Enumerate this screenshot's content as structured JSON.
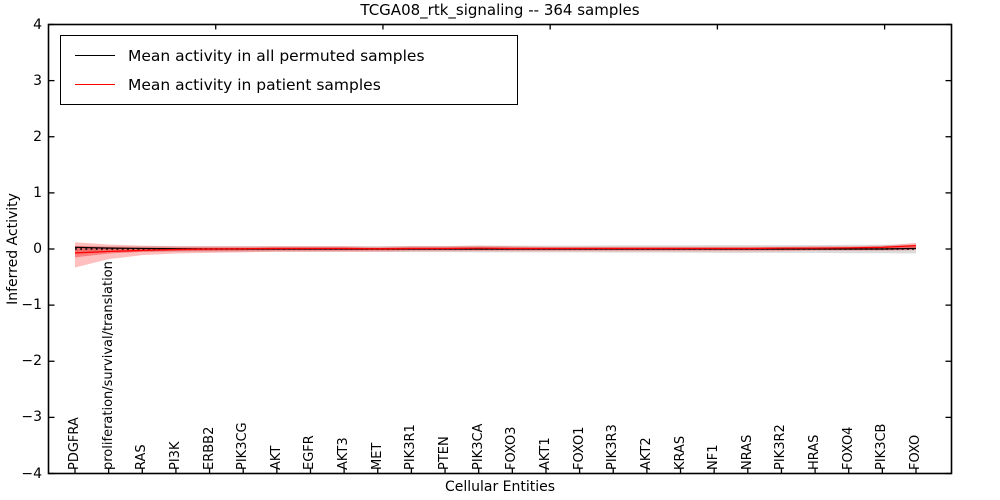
{
  "figure": {
    "title": "TCGA08_rtk_signaling -- 364 samples",
    "xlabel": "Cellular Entities",
    "ylabel": "Inferred Activity"
  },
  "legend": {
    "position": "upper left",
    "entries": [
      {
        "label": "Mean activity in all permuted samples",
        "color": "#000000"
      },
      {
        "label": "Mean activity in patient samples",
        "color": "#ff0000"
      }
    ]
  },
  "chart_data": {
    "type": "line",
    "title": "TCGA08_rtk_signaling -- 364 samples",
    "xlabel": "Cellular Entities",
    "ylabel": "Inferred Activity",
    "ylim": [
      -4,
      4
    ],
    "yticks": [
      4,
      3,
      2,
      1,
      0,
      -1,
      -2,
      -3,
      -4
    ],
    "ytick_labels": [
      "4",
      "3",
      "2",
      "1",
      "0",
      "−1",
      "−2",
      "−3",
      "−4"
    ],
    "grid": false,
    "legend_position": "upper left",
    "categories": [
      "PDGFRA",
      "proliferation/survival/translation",
      "RAS",
      "PI3K",
      "ERBB2",
      "PIK3CG",
      "AKT",
      "EGFR",
      "AKT3",
      "MET",
      "PIK3R1",
      "PTEN",
      "PIK3CA",
      "FOXO3",
      "AKT1",
      "FOXO1",
      "PIK3R3",
      "AKT2",
      "KRAS",
      "NF1",
      "NRAS",
      "PIK3R2",
      "HRAS",
      "FOXO4",
      "PIK3CB",
      "FOXO"
    ],
    "series": [
      {
        "name": "Mean activity in all permuted samples",
        "color": "#000000",
        "style": "solid",
        "width": 1.2,
        "values": [
          0.03,
          0.015,
          0.01,
          0.005,
          0,
          0,
          0,
          0,
          0,
          0,
          0,
          0,
          0,
          0,
          0,
          0,
          0,
          0,
          0,
          0,
          0,
          0,
          0,
          0,
          0,
          0.01
        ]
      },
      {
        "name": "Mean activity in patient samples",
        "color": "#ff0000",
        "style": "solid",
        "width": 1.3,
        "values": [
          -0.07,
          -0.045,
          -0.025,
          -0.01,
          0,
          0.005,
          0.01,
          0.01,
          0.01,
          0.005,
          0.01,
          0.01,
          0.015,
          0.01,
          0.01,
          0.01,
          0.01,
          0.01,
          0.01,
          0.01,
          0.01,
          0.015,
          0.015,
          0.02,
          0.03,
          0.06
        ]
      },
      {
        "name": "zero-reference",
        "color": "#000000",
        "style": "dotted",
        "width": 1.5,
        "values": [
          0,
          0,
          0,
          0,
          0,
          0,
          0,
          0,
          0,
          0,
          0,
          0,
          0,
          0,
          0,
          0,
          0,
          0,
          0,
          0,
          0,
          0,
          0,
          0,
          0,
          0
        ]
      }
    ],
    "bands": [
      {
        "name": "permuted-samples-std-band",
        "color": "#999999",
        "opacity": 0.35,
        "core_scale": 0,
        "upper": [
          0.05,
          0.05,
          0.05,
          0.05,
          0.05,
          0.05,
          0.05,
          0.05,
          0.05,
          0.05,
          0.055,
          0.055,
          0.06,
          0.06,
          0.06,
          0.06,
          0.065,
          0.065,
          0.065,
          0.07,
          0.07,
          0.07,
          0.07,
          0.075,
          0.075,
          0.08
        ],
        "lower": [
          -0.05,
          -0.05,
          -0.05,
          -0.05,
          -0.05,
          -0.05,
          -0.05,
          -0.05,
          -0.05,
          -0.05,
          -0.055,
          -0.055,
          -0.06,
          -0.06,
          -0.06,
          -0.06,
          -0.065,
          -0.065,
          -0.065,
          -0.07,
          -0.07,
          -0.07,
          -0.07,
          -0.075,
          -0.075,
          -0.08
        ]
      },
      {
        "name": "patient-samples-std-band",
        "color": "#ff0000",
        "opacity": 0.25,
        "core_scale": 0.45,
        "upper": [
          0.12,
          0.08,
          0.06,
          0.05,
          0.05,
          0.05,
          0.05,
          0.05,
          0.05,
          0.04,
          0.05,
          0.05,
          0.06,
          0.05,
          0.04,
          0.04,
          0.04,
          0.04,
          0.04,
          0.04,
          0.04,
          0.04,
          0.05,
          0.05,
          0.06,
          0.11
        ],
        "lower": [
          -0.33,
          -0.18,
          -0.11,
          -0.08,
          -0.07,
          -0.06,
          -0.05,
          -0.05,
          -0.05,
          -0.05,
          -0.04,
          -0.04,
          -0.04,
          -0.04,
          -0.04,
          -0.04,
          -0.04,
          -0.04,
          -0.04,
          -0.04,
          -0.04,
          -0.04,
          -0.03,
          -0.03,
          -0.03,
          -0.02
        ]
      }
    ]
  }
}
